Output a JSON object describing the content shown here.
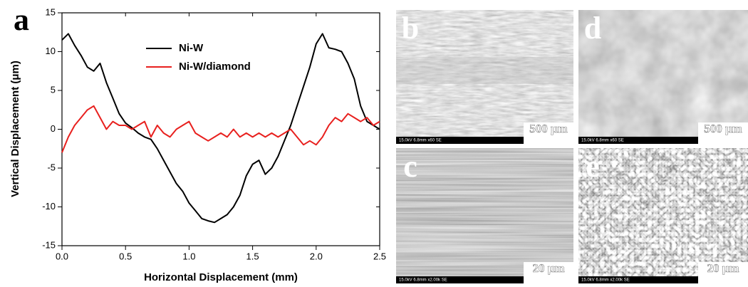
{
  "chart_data": {
    "type": "line",
    "panel_label": "a",
    "xlabel": "Horizontal Displacement (mm)",
    "ylabel": "Vertical Displacement (μm)",
    "x": [
      0.0,
      0.05,
      0.1,
      0.15,
      0.2,
      0.25,
      0.3,
      0.35,
      0.4,
      0.45,
      0.5,
      0.55,
      0.6,
      0.65,
      0.7,
      0.75,
      0.8,
      0.85,
      0.9,
      0.95,
      1.0,
      1.05,
      1.1,
      1.15,
      1.2,
      1.25,
      1.3,
      1.35,
      1.4,
      1.45,
      1.5,
      1.55,
      1.6,
      1.65,
      1.7,
      1.75,
      1.8,
      1.85,
      1.9,
      1.95,
      2.0,
      2.05,
      2.1,
      2.15,
      2.2,
      2.25,
      2.3,
      2.35,
      2.4,
      2.45,
      2.5
    ],
    "series": [
      {
        "name": "Ni-W",
        "color": "#000000",
        "values": [
          11.5,
          12.3,
          10.8,
          9.5,
          8.0,
          7.5,
          8.5,
          6.0,
          4.0,
          2.0,
          0.8,
          0.2,
          -0.5,
          -1.0,
          -1.3,
          -2.5,
          -4.0,
          -5.5,
          -7.0,
          -8.0,
          -9.5,
          -10.5,
          -11.5,
          -11.8,
          -12.0,
          -11.5,
          -11.0,
          -10.0,
          -8.5,
          -6.0,
          -4.5,
          -4.0,
          -5.8,
          -5.0,
          -3.5,
          -1.5,
          0.5,
          3.0,
          5.5,
          8.0,
          11.0,
          12.3,
          10.5,
          10.3,
          10.0,
          8.5,
          6.5,
          3.0,
          1.0,
          0.5,
          0.0
        ]
      },
      {
        "name": "Ni-W/diamond",
        "color": "#e8201e",
        "values": [
          -3.0,
          -1.0,
          0.5,
          1.5,
          2.5,
          3.0,
          1.5,
          0.0,
          1.0,
          0.5,
          0.5,
          0.0,
          0.5,
          1.0,
          -1.0,
          0.5,
          -0.5,
          -1.0,
          0.0,
          0.5,
          1.0,
          -0.5,
          -1.0,
          -1.5,
          -1.0,
          -0.5,
          -1.0,
          0.0,
          -1.0,
          -0.5,
          -1.0,
          -0.5,
          -1.0,
          -0.5,
          -1.0,
          -0.5,
          0.0,
          -1.0,
          -2.0,
          -1.5,
          -2.0,
          -1.0,
          0.5,
          1.5,
          1.0,
          2.0,
          1.5,
          1.0,
          1.5,
          0.5,
          1.0
        ]
      }
    ],
    "xlim": [
      0,
      2.5
    ],
    "xticks": [
      {
        "value": 0,
        "label": "0.0"
      },
      0.5,
      {
        "value": 1,
        "label": "1.0"
      },
      1.5,
      {
        "value": 2,
        "label": "2.0"
      },
      2.5
    ],
    "ylim": [
      -15,
      15
    ],
    "yticks": [
      -15,
      -10,
      -5,
      0,
      5,
      10,
      15
    ],
    "legend": "upper center",
    "grid": false
  },
  "panels": [
    {
      "label": "b",
      "info": "15.0kV 6.8mm x60 SE",
      "scale": "500 μm"
    },
    {
      "label": "d",
      "info": "15.0kV 6.8mm x60 SE",
      "scale": "500 μm"
    },
    {
      "label": "c",
      "info": "15.0kV 6.8mm x2.00k SE",
      "scale": "20 μm"
    },
    {
      "label": "e",
      "info": "15.0kV 6.8mm x2.00k SE",
      "scale": "20 μm"
    }
  ]
}
